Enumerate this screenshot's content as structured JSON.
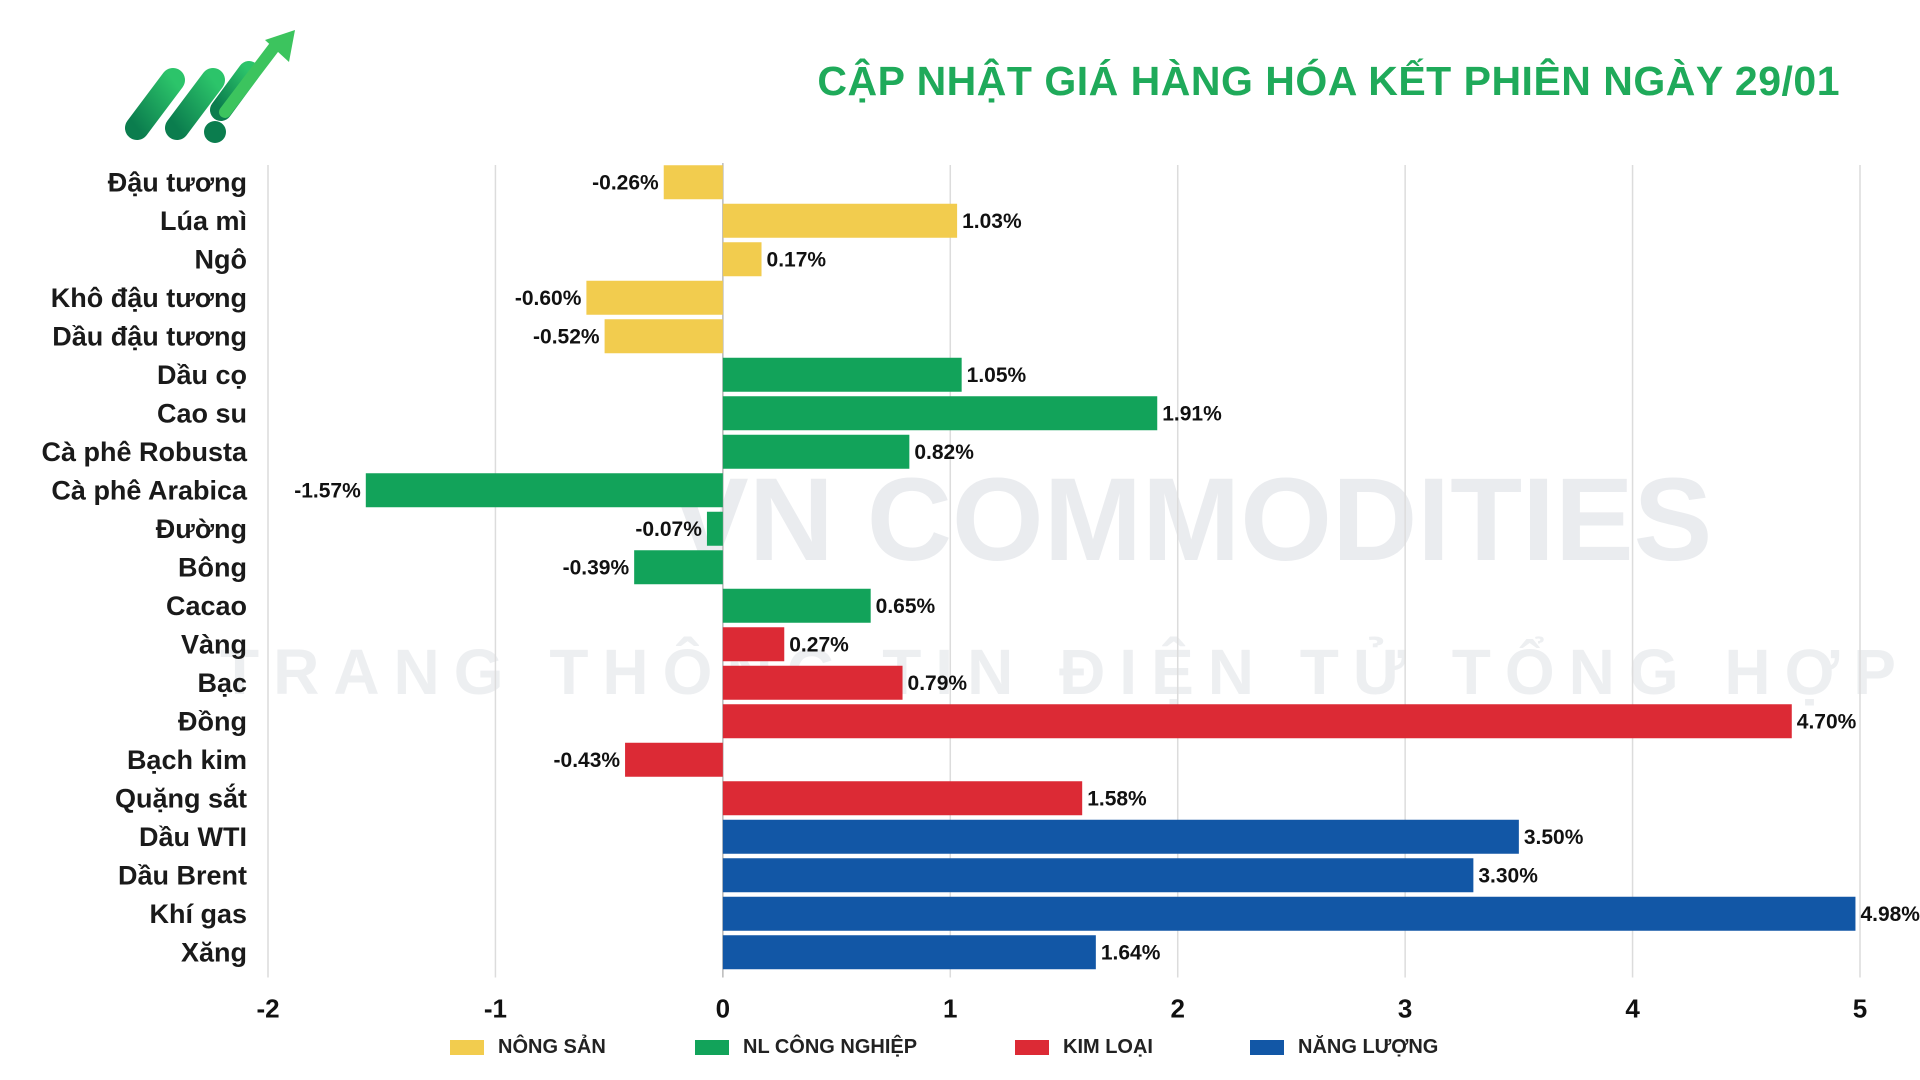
{
  "title": "CẬP NHẬT GIÁ HÀNG HÓA KẾT PHIÊN NGÀY 29/01",
  "watermark": {
    "line1": "VN COMMODITIES",
    "line2": "TRANG THÔNG TIN ĐIỆN TỬ TỔNG HỢP"
  },
  "colors": {
    "title": "#1faa5a",
    "nong_san": "#f2cc4e",
    "nl_cong_nghiep": "#12a35a",
    "kim_loai": "#dc2a35",
    "nang_luong": "#1257a6",
    "grid": "#dcdcdc"
  },
  "legend": [
    {
      "label": "NÔNG SẢN",
      "group": "nong_san"
    },
    {
      "label": "NL CÔNG NGHIỆP",
      "group": "nl_cong_nghiep"
    },
    {
      "label": "KIM LOẠI",
      "group": "kim_loai"
    },
    {
      "label": "NĂNG LƯỢNG",
      "group": "nang_luong"
    }
  ],
  "chart_data": {
    "type": "bar",
    "orientation": "horizontal",
    "title": "CẬP NHẬT GIÁ HÀNG HÓA KẾT PHIÊN NGÀY 29/01",
    "xlim": [
      -2,
      5
    ],
    "xticks": [
      "-2",
      "-1",
      "0",
      "1",
      "2",
      "3",
      "4",
      "5"
    ],
    "grid": true,
    "legend_position": "bottom",
    "categories": [
      "Đậu tương",
      "Lúa mì",
      "Ngô",
      "Khô đậu tương",
      "Dầu đậu tương",
      "Dầu cọ",
      "Cao su",
      "Cà phê Robusta",
      "Cà phê Arabica",
      "Đường",
      "Bông",
      "Cacao",
      "Vàng",
      "Bạc",
      "Đồng",
      "Bạch kim",
      "Quặng sắt",
      "Dầu WTI",
      "Dầu Brent",
      "Khí gas",
      "Xăng"
    ],
    "values": [
      -0.26,
      1.03,
      0.17,
      -0.6,
      -0.52,
      1.05,
      1.91,
      0.82,
      -1.57,
      -0.07,
      -0.39,
      0.65,
      0.27,
      0.79,
      4.7,
      -0.43,
      1.58,
      3.5,
      3.3,
      4.98,
      1.64
    ],
    "labels": [
      "-0.26%",
      "1.03%",
      "0.17%",
      "-0.60%",
      "-0.52%",
      "1.05%",
      "1.91%",
      "0.82%",
      "-1.57%",
      "-0.07%",
      "-0.39%",
      "0.65%",
      "0.27%",
      "0.79%",
      "4.70%",
      "-0.43%",
      "1.58%",
      "3.50%",
      "3.30%",
      "4.98%",
      "1.64%"
    ],
    "groups": [
      "nong_san",
      "nong_san",
      "nong_san",
      "nong_san",
      "nong_san",
      "nl_cong_nghiep",
      "nl_cong_nghiep",
      "nl_cong_nghiep",
      "nl_cong_nghiep",
      "nl_cong_nghiep",
      "nl_cong_nghiep",
      "nl_cong_nghiep",
      "kim_loai",
      "kim_loai",
      "kim_loai",
      "kim_loai",
      "kim_loai",
      "nang_luong",
      "nang_luong",
      "nang_luong",
      "nang_luong"
    ]
  }
}
